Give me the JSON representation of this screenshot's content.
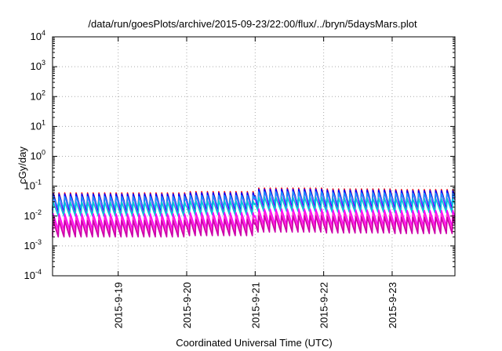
{
  "chart_data": {
    "type": "line",
    "title": "/data/run/goesPlots/archive/2015-09-23/22:00/flux/../bryn/5daysMars.plot",
    "xlabel": "Coordinated Universal Time (UTC)",
    "ylabel": "cGy/day",
    "yscale": "log",
    "ylim": [
      0.0001,
      10000
    ],
    "xlim_days": [
      "2015-09-18 01:00",
      "2015-09-23 22:00"
    ],
    "y_ticks": [
      {
        "base": "10",
        "exp": "-4"
      },
      {
        "base": "10",
        "exp": "-3"
      },
      {
        "base": "10",
        "exp": "-2"
      },
      {
        "base": "10",
        "exp": "-1"
      },
      {
        "base": "10",
        "exp": "0"
      },
      {
        "base": "10",
        "exp": "1"
      },
      {
        "base": "10",
        "exp": "2"
      },
      {
        "base": "10",
        "exp": "3"
      },
      {
        "base": "10",
        "exp": "4"
      }
    ],
    "x_ticks": [
      "2015-9-19",
      "2015-9-20",
      "2015-9-21",
      "2015-9-22",
      "2015-9-23"
    ],
    "grid": true,
    "legend": "none",
    "cycle_hours": 2,
    "daily_level_multiplier": [
      {
        "day": "2015-09-18",
        "factor": 1.0
      },
      {
        "day": "2015-09-19",
        "factor": 1.0
      },
      {
        "day": "2015-09-20",
        "factor": 1.1
      },
      {
        "day": "2015-09-21",
        "factor": 1.45
      },
      {
        "day": "2015-09-22",
        "factor": 1.35
      },
      {
        "day": "2015-09-23",
        "factor": 1.3
      }
    ],
    "series": [
      {
        "color": "#ff0000",
        "peak": 0.06,
        "trough": 0.015
      },
      {
        "color": "#b000ff",
        "peak": 0.05,
        "trough": 0.012
      },
      {
        "color": "#0000ff",
        "peak": 0.055,
        "trough": 0.016
      },
      {
        "color": "#1e90ff",
        "peak": 0.045,
        "trough": 0.018
      },
      {
        "color": "#00c8d8",
        "peak": 0.03,
        "trough": 0.01
      },
      {
        "color": "#ff00ff",
        "peak": 0.012,
        "trough": 0.0035
      },
      {
        "color": "#ff33cc",
        "peak": 0.009,
        "trough": 0.0025
      },
      {
        "color": "#cc00aa",
        "peak": 0.007,
        "trough": 0.002
      }
    ]
  }
}
